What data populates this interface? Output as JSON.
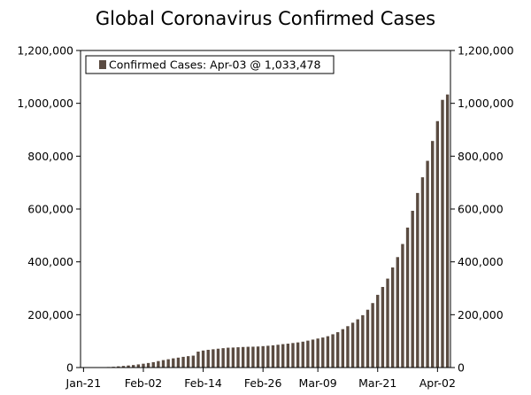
{
  "chart_data": {
    "type": "bar",
    "title": "Global Coronavirus Confirmed Cases",
    "xlabel": "",
    "ylabel": "",
    "ylim": [
      0,
      1200000
    ],
    "y_ticks": [
      0,
      200000,
      400000,
      600000,
      800000,
      1000000,
      1200000
    ],
    "y_tick_labels": [
      "0",
      "200,000",
      "400,000",
      "600,000",
      "800,000",
      "1,000,000",
      "1,200,000"
    ],
    "x_tick_labels": [
      "Jan-21",
      "Feb-02",
      "Feb-14",
      "Feb-26",
      "Mar-09",
      "Mar-21",
      "Apr-02"
    ],
    "x_tick_indices": [
      0,
      12,
      24,
      36,
      47,
      59,
      71
    ],
    "dual_y_axis": true,
    "grid": false,
    "legend_position": "top-left",
    "bar_color": "#5a4b41",
    "series": [
      {
        "name": "Confirmed Cases: Apr-03 @ 1,033,478",
        "values": [
          300,
          500,
          600,
          900,
          1300,
          2000,
          2800,
          4500,
          6000,
          7800,
          9600,
          11900,
          14500,
          17200,
          20400,
          24500,
          28200,
          31400,
          34800,
          37500,
          40500,
          43100,
          45100,
          60300,
          64400,
          67100,
          69200,
          71300,
          73300,
          75200,
          75700,
          76800,
          77800,
          78600,
          78900,
          79600,
          81000,
          82500,
          84200,
          86200,
          88600,
          90400,
          92800,
          95100,
          97900,
          101800,
          105800,
          109800,
          113600,
          118600,
          125900,
          133800,
          145300,
          156600,
          169600,
          182500,
          198200,
          218800,
          244000,
          275200,
          305000,
          336600,
          378800,
          418000,
          467600,
          529700,
          593300,
          660700,
          720100,
          782400,
          857500,
          932600,
          1013200,
          1033478
        ]
      }
    ]
  }
}
